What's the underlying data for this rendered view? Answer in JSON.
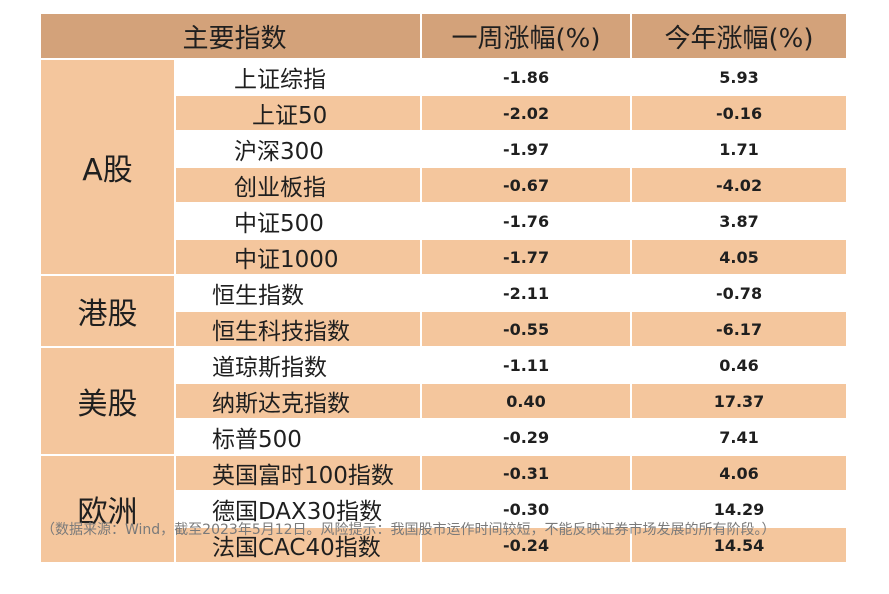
{
  "table": {
    "headers": [
      "主要指数",
      "一周涨幅(%)",
      "今年涨幅(%)"
    ],
    "groups": [
      {
        "region": "A股",
        "rows": [
          {
            "name": "上证综指",
            "week": "-1.86",
            "ytd": "5.93"
          },
          {
            "name": "上证50",
            "week": "-2.02",
            "ytd": "-0.16"
          },
          {
            "name": "沪深300",
            "week": "-1.97",
            "ytd": "1.71"
          },
          {
            "name": "创业板指",
            "week": "-0.67",
            "ytd": "-4.02"
          },
          {
            "name": "中证500",
            "week": "-1.76",
            "ytd": "3.87"
          },
          {
            "name": "中证1000",
            "week": "-1.77",
            "ytd": "4.05"
          }
        ]
      },
      {
        "region": "港股",
        "rows": [
          {
            "name": "恒生指数",
            "week": "-2.11",
            "ytd": "-0.78"
          },
          {
            "name": "恒生科技指数",
            "week": "-0.55",
            "ytd": "-6.17"
          }
        ]
      },
      {
        "region": "美股",
        "rows": [
          {
            "name": "道琼斯指数",
            "week": "-1.11",
            "ytd": "0.46"
          },
          {
            "name": "纳斯达克指数",
            "week": "0.40",
            "ytd": "17.37"
          },
          {
            "name": "标普500",
            "week": "-0.29",
            "ytd": "7.41"
          }
        ]
      },
      {
        "region": "欧洲",
        "rows": [
          {
            "name": "英国富时100指数",
            "week": "-0.31",
            "ytd": "4.06"
          },
          {
            "name": "德国DAX30指数",
            "week": "-0.30",
            "ytd": "14.29"
          },
          {
            "name": "法国CAC40指数",
            "week": "-0.24",
            "ytd": "14.54"
          }
        ]
      }
    ]
  },
  "footnote": "（数据来源：Wind，截至2023年5月12日。风险提示：我国股市运作时间较短，不能反映证券市场发展的所有阶段。）",
  "colors": {
    "header": "#d3a27a",
    "band": "#f4c69d",
    "white": "#ffffff"
  }
}
